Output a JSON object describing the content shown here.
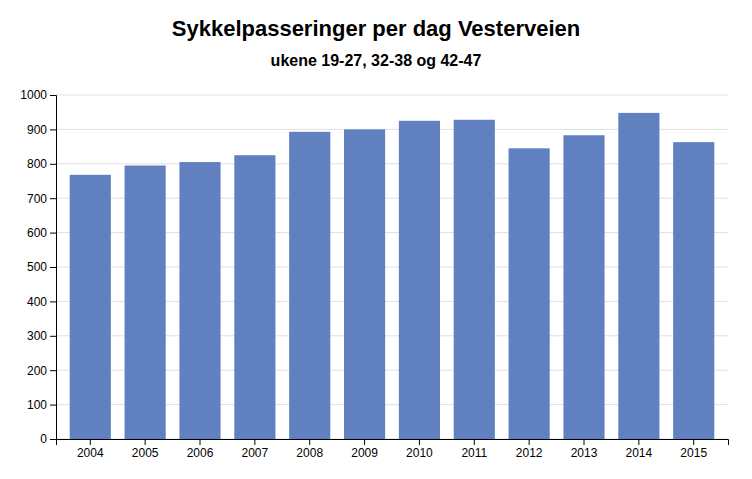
{
  "chart_data": {
    "type": "bar",
    "title": "Sykkelpasseringer per dag Vesterveien",
    "subtitle": "ukene 19-27, 32-38 og 42-47",
    "categories": [
      "2004",
      "2005",
      "2006",
      "2007",
      "2008",
      "2009",
      "2010",
      "2011",
      "2012",
      "2013",
      "2014",
      "2015"
    ],
    "values": [
      768,
      795,
      805,
      825,
      893,
      900,
      925,
      928,
      845,
      883,
      948,
      863
    ],
    "color": "#6080C0",
    "ylim": [
      0,
      1000
    ],
    "yticks": [
      0,
      100,
      200,
      300,
      400,
      500,
      600,
      700,
      800,
      900,
      1000
    ],
    "grid": true
  }
}
